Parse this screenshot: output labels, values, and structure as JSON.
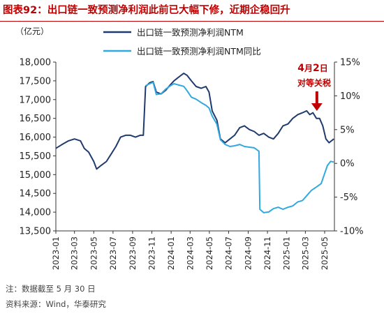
{
  "title_prefix": "图表92：",
  "title_main": "出口链一致预测净利润此前已大幅下修，近期企稳回升",
  "unit_label": "（亿元）",
  "footer_note": "注：数据截至 5 月 30 日",
  "footer_source": "资料来源：Wind，华泰研究",
  "colors": {
    "title": "#c00000",
    "series1": "#1f3a6e",
    "series2": "#31a8e0",
    "annotation": "#c00000"
  },
  "chart_data": {
    "type": "line",
    "x_start": "2023-01",
    "x_end": "2025-06",
    "x_ticks": [
      "2023-01",
      "2023-03",
      "2023-05",
      "2023-07",
      "2023-09",
      "2023-11",
      "2024-01",
      "2024-03",
      "2024-05",
      "2024-07",
      "2024-09",
      "2024-11",
      "2025-01",
      "2025-03",
      "2025-05"
    ],
    "y_left": {
      "min": 13500,
      "max": 18000,
      "ticks": [
        "13,500",
        "14,000",
        "14,500",
        "15,000",
        "15,500",
        "16,000",
        "16,500",
        "17,000",
        "17,500",
        "18,000"
      ]
    },
    "y_right": {
      "min": -10,
      "max": 15,
      "ticks": [
        "-10%",
        "-5%",
        "0%",
        "5%",
        "10%",
        "15%"
      ]
    },
    "grid": false,
    "legend_position": "top",
    "annotation": {
      "line1_parts": [
        "4",
        "月",
        "2",
        "日"
      ],
      "line2": "对等关税",
      "x": "2025-04-02"
    },
    "series": [
      {
        "name": "出口链一致预测净利润NTM",
        "axis": "left",
        "color": "#1f3a6e",
        "points": [
          [
            "2023-01-01",
            15700
          ],
          [
            "2023-01-20",
            15800
          ],
          [
            "2023-02-10",
            15900
          ],
          [
            "2023-03-01",
            15950
          ],
          [
            "2023-03-20",
            15900
          ],
          [
            "2023-04-01",
            15700
          ],
          [
            "2023-04-15",
            15600
          ],
          [
            "2023-05-01",
            15350
          ],
          [
            "2023-05-10",
            15150
          ],
          [
            "2023-05-25",
            15250
          ],
          [
            "2023-06-10",
            15350
          ],
          [
            "2023-06-25",
            15550
          ],
          [
            "2023-07-10",
            15750
          ],
          [
            "2023-07-25",
            16000
          ],
          [
            "2023-08-10",
            16050
          ],
          [
            "2023-08-25",
            16050
          ],
          [
            "2023-09-10",
            16000
          ],
          [
            "2023-09-25",
            16050
          ],
          [
            "2023-10-05",
            16050
          ],
          [
            "2023-10-12",
            17350
          ],
          [
            "2023-10-25",
            17450
          ],
          [
            "2023-11-05",
            17480
          ],
          [
            "2023-11-15",
            17200
          ],
          [
            "2023-11-30",
            17150
          ],
          [
            "2023-12-15",
            17250
          ],
          [
            "2023-12-30",
            17400
          ],
          [
            "2024-01-10",
            17500
          ],
          [
            "2024-01-25",
            17600
          ],
          [
            "2024-02-10",
            17700
          ],
          [
            "2024-02-20",
            17650
          ],
          [
            "2024-03-05",
            17500
          ],
          [
            "2024-03-20",
            17350
          ],
          [
            "2024-04-05",
            17300
          ],
          [
            "2024-04-20",
            17350
          ],
          [
            "2024-04-30",
            17200
          ],
          [
            "2024-05-10",
            16700
          ],
          [
            "2024-05-25",
            16450
          ],
          [
            "2024-06-05",
            15950
          ],
          [
            "2024-06-20",
            15850
          ],
          [
            "2024-07-05",
            15950
          ],
          [
            "2024-07-20",
            16050
          ],
          [
            "2024-08-05",
            16250
          ],
          [
            "2024-08-20",
            16300
          ],
          [
            "2024-09-05",
            16200
          ],
          [
            "2024-09-20",
            16150
          ],
          [
            "2024-10-05",
            16050
          ],
          [
            "2024-10-20",
            16100
          ],
          [
            "2024-11-05",
            16000
          ],
          [
            "2024-11-20",
            15950
          ],
          [
            "2024-12-05",
            16100
          ],
          [
            "2024-12-20",
            16300
          ],
          [
            "2025-01-05",
            16350
          ],
          [
            "2025-01-20",
            16500
          ],
          [
            "2025-02-05",
            16600
          ],
          [
            "2025-02-20",
            16650
          ],
          [
            "2025-03-05",
            16700
          ],
          [
            "2025-03-15",
            16600
          ],
          [
            "2025-03-25",
            16650
          ],
          [
            "2025-04-05",
            16500
          ],
          [
            "2025-04-15",
            16500
          ],
          [
            "2025-04-25",
            16300
          ],
          [
            "2025-05-05",
            15950
          ],
          [
            "2025-05-15",
            15850
          ],
          [
            "2025-05-30",
            15950
          ]
        ]
      },
      {
        "name": "出口链一致预测净利润NTM同比",
        "axis": "right",
        "color": "#31a8e0",
        "points": [
          [
            "2023-10-12",
            11.5
          ],
          [
            "2023-10-25",
            11.8
          ],
          [
            "2023-11-05",
            12.0
          ],
          [
            "2023-11-15",
            10.2
          ],
          [
            "2023-11-30",
            10.3
          ],
          [
            "2023-12-15",
            11.0
          ],
          [
            "2023-12-30",
            11.5
          ],
          [
            "2024-01-10",
            11.8
          ],
          [
            "2024-01-25",
            11.6
          ],
          [
            "2024-02-10",
            11.4
          ],
          [
            "2024-02-20",
            10.8
          ],
          [
            "2024-03-05",
            9.8
          ],
          [
            "2024-03-20",
            9.5
          ],
          [
            "2024-04-05",
            9.0
          ],
          [
            "2024-04-20",
            8.6
          ],
          [
            "2024-04-30",
            8.2
          ],
          [
            "2024-05-10",
            7.0
          ],
          [
            "2024-05-25",
            5.8
          ],
          [
            "2024-06-05",
            3.5
          ],
          [
            "2024-06-20",
            2.8
          ],
          [
            "2024-07-05",
            2.5
          ],
          [
            "2024-07-20",
            2.6
          ],
          [
            "2024-08-05",
            2.8
          ],
          [
            "2024-08-20",
            2.5
          ],
          [
            "2024-09-05",
            2.4
          ],
          [
            "2024-09-20",
            2.3
          ],
          [
            "2024-10-05",
            1.8
          ],
          [
            "2024-10-08",
            -6.8
          ],
          [
            "2024-10-20",
            -7.3
          ],
          [
            "2024-11-05",
            -7.2
          ],
          [
            "2024-11-20",
            -6.7
          ],
          [
            "2024-12-05",
            -6.5
          ],
          [
            "2024-12-20",
            -6.8
          ],
          [
            "2025-01-05",
            -6.5
          ],
          [
            "2025-01-20",
            -6.3
          ],
          [
            "2025-02-05",
            -5.7
          ],
          [
            "2025-02-20",
            -5.5
          ],
          [
            "2025-03-05",
            -4.8
          ],
          [
            "2025-03-20",
            -4.0
          ],
          [
            "2025-04-05",
            -3.5
          ],
          [
            "2025-04-20",
            -3.0
          ],
          [
            "2025-05-01",
            -1.5
          ],
          [
            "2025-05-10",
            -0.3
          ],
          [
            "2025-05-20",
            0.3
          ],
          [
            "2025-05-30",
            0.2
          ]
        ]
      }
    ]
  }
}
